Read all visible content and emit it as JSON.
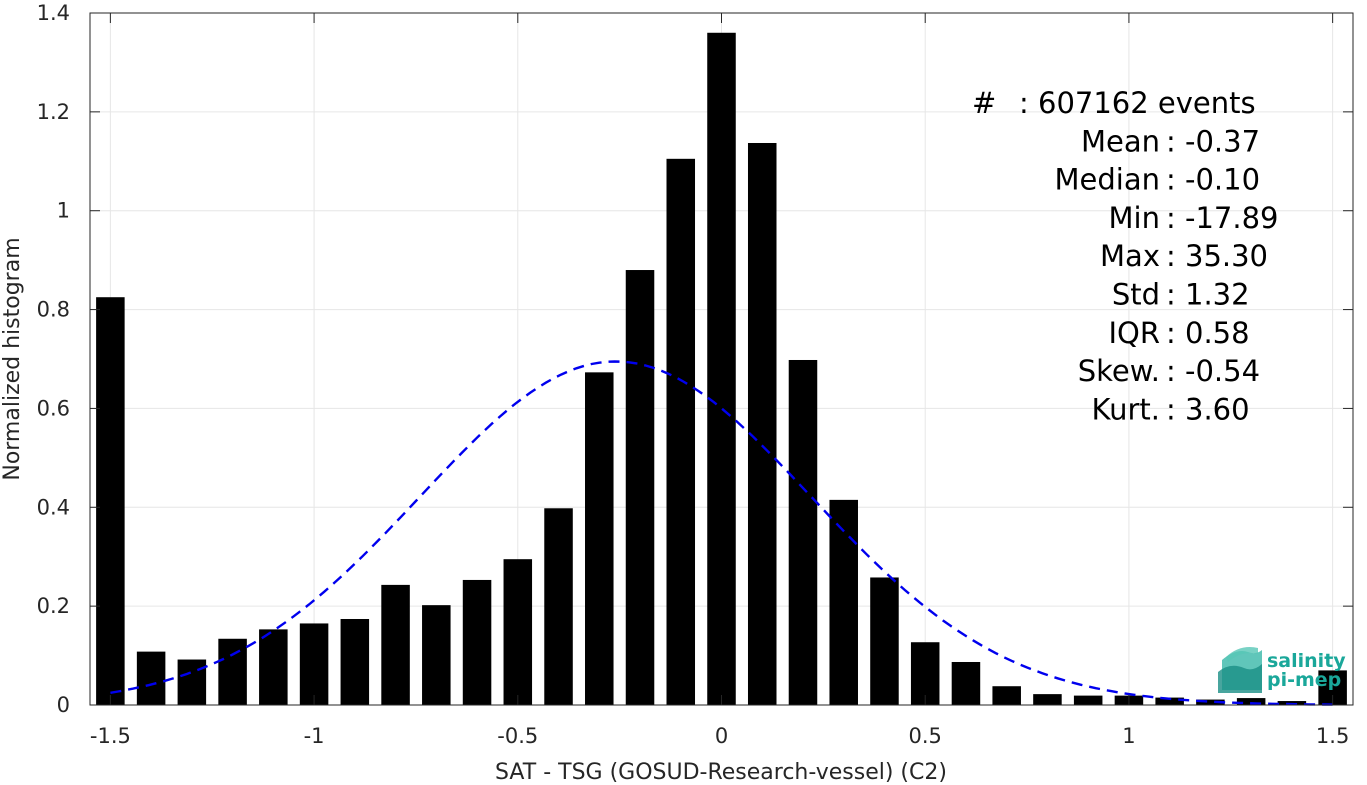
{
  "chart_data": {
    "type": "bar",
    "xlabel": "SAT - TSG (GOSUD-Research-vessel) (C2)",
    "ylabel": "Normalized histogram",
    "xlim": [
      -1.55,
      1.55
    ],
    "ylim": [
      0,
      1.4
    ],
    "xticks": [
      -1.5,
      -1,
      -0.5,
      0,
      0.5,
      1,
      1.5
    ],
    "xtick_labels": [
      "-1.5",
      "-1",
      "-0.5",
      "0",
      "0.5",
      "1",
      "1.5"
    ],
    "yticks": [
      0,
      0.2,
      0.4,
      0.6,
      0.8,
      1,
      1.2,
      1.4
    ],
    "ytick_labels": [
      "0",
      "0.2",
      "0.4",
      "0.6",
      "0.8",
      "1",
      "1.2",
      "1.4"
    ],
    "grid": true,
    "bin_width": 0.1,
    "x": [
      -1.5,
      -1.4,
      -1.3,
      -1.2,
      -1.1,
      -1.0,
      -0.9,
      -0.8,
      -0.7,
      -0.6,
      -0.5,
      -0.4,
      -0.3,
      -0.2,
      -0.1,
      0.0,
      0.1,
      0.2,
      0.3,
      0.4,
      0.5,
      0.6,
      0.7,
      0.8,
      0.9,
      1.0,
      1.1,
      1.2,
      1.3,
      1.4,
      1.5
    ],
    "values": [
      0.825,
      0.108,
      0.092,
      0.134,
      0.153,
      0.165,
      0.174,
      0.243,
      0.202,
      0.253,
      0.295,
      0.398,
      0.673,
      0.88,
      1.105,
      1.36,
      1.137,
      0.698,
      0.415,
      0.258,
      0.127,
      0.087,
      0.038,
      0.022,
      0.019,
      0.019,
      0.015,
      0.011,
      0.014,
      0.008,
      0.07
    ],
    "fit_curve": {
      "style": "dashed",
      "color": "#0000ee",
      "distribution": "gaussian",
      "peak_x": -0.26,
      "peak_y": 0.695,
      "sigma": 0.48,
      "x_range": [
        -1.5,
        1.5
      ]
    },
    "bar_color": "#000000",
    "stats": [
      {
        "label": "#",
        "sep": ":",
        "value": "607162 events"
      },
      {
        "label": "Mean",
        "sep": ":",
        "value": "-0.37"
      },
      {
        "label": "Median",
        "sep": ":",
        "value": "-0.10"
      },
      {
        "label": "Min",
        "sep": ":",
        "value": "-17.89"
      },
      {
        "label": "Max",
        "sep": ":",
        "value": "35.30"
      },
      {
        "label": "Std",
        "sep": ":",
        "value": "1.32"
      },
      {
        "label": "IQR",
        "sep": ":",
        "value": "0.58"
      },
      {
        "label": "Skew.",
        "sep": ":",
        "value": "-0.54"
      },
      {
        "label": "Kurt.",
        "sep": ":",
        "value": "3.60"
      }
    ]
  },
  "logo": {
    "line1": "salinity",
    "line2": "pi-mep",
    "color": "#1aa79a"
  }
}
